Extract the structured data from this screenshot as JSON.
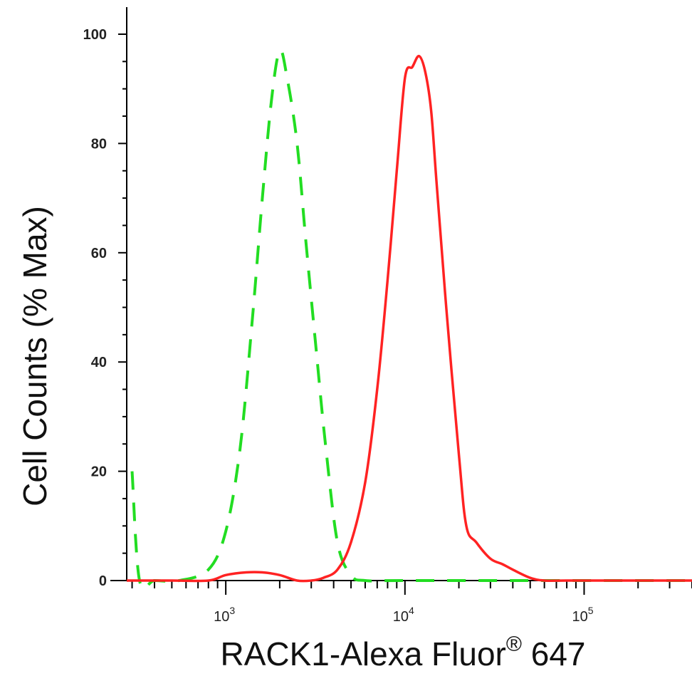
{
  "chart_data": {
    "type": "line",
    "xlabel": "RACK1-Alexa Fluor",
    "xlabel_sup": "®",
    "xlabel_suffix": " 647",
    "ylabel": "Cell Counts (% Max)",
    "x_scale": "log",
    "xlim": [
      280,
      400000
    ],
    "ylim": [
      0,
      100
    ],
    "y_ticks": [
      "0",
      "20",
      "40",
      "60",
      "80",
      "100"
    ],
    "x_ticks": [
      {
        "value": 1000,
        "base": "10",
        "exp": "3"
      },
      {
        "value": 10000,
        "base": "10",
        "exp": "4"
      },
      {
        "value": 100000,
        "base": "10",
        "exp": "5"
      }
    ],
    "grid": false,
    "series": [
      {
        "style": "dashed",
        "color": "#22dd22",
        "x": [
          300,
          330,
          400,
          550,
          800,
          1000,
          1200,
          1400,
          1600,
          1800,
          2000,
          2200,
          2500,
          2800,
          3200,
          3600,
          4200,
          5000,
          6000,
          10000,
          100000,
          400000
        ],
        "y": [
          20,
          0,
          0,
          0,
          2,
          9,
          24,
          47,
          70,
          88,
          97,
          92,
          80,
          62,
          42,
          25,
          7,
          1,
          0,
          0,
          0,
          0
        ]
      },
      {
        "style": "solid",
        "color": "#ff2222",
        "x": [
          280,
          500,
          800,
          1000,
          1300,
          1600,
          2000,
          2500,
          3000,
          3500,
          4200,
          5000,
          6000,
          7000,
          8000,
          9000,
          10000,
          11000,
          12000,
          13000,
          14000,
          15000,
          17000,
          20000,
          22000,
          25000,
          30000,
          35000,
          40000,
          50000,
          60000,
          80000,
          150000,
          400000
        ],
        "y": [
          0,
          0,
          0,
          1,
          1.5,
          1.5,
          1,
          0,
          0,
          0.5,
          2,
          7,
          18,
          35,
          55,
          75,
          92,
          94,
          96,
          93,
          86,
          73,
          50,
          23,
          10,
          7,
          4,
          3,
          2,
          0.5,
          0,
          0,
          0,
          0
        ]
      }
    ]
  }
}
